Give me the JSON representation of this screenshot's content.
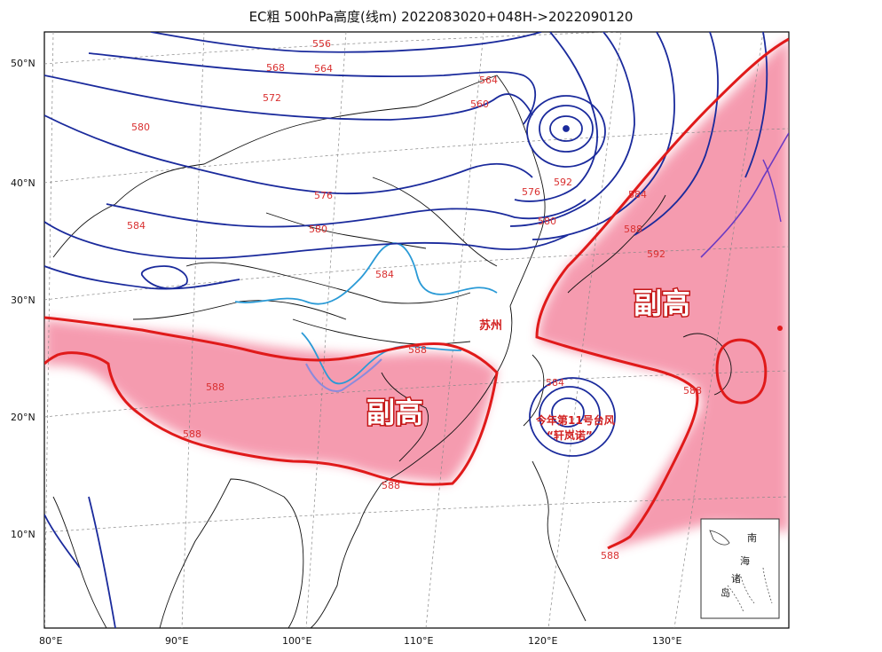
{
  "title": "EC粗 500hPa高度(线m) 2022083020+048H->2022090120",
  "axes": {
    "lat_labels": [
      "50°N",
      "40°N",
      "30°N",
      "20°N",
      "10°N"
    ],
    "lon_labels": [
      "80°E",
      "90°E",
      "100°E",
      "110°E",
      "120°E",
      "130°E"
    ]
  },
  "contour_labels": {
    "l556": "556",
    "l564a": "564",
    "l564b": "564",
    "l568": "568",
    "l572": "572",
    "l580a": "580",
    "l580b": "580",
    "l576a": "576",
    "l576b": "576",
    "l584a": "584",
    "l584b": "584",
    "l584c": "584",
    "l584d": "584",
    "l584e": "584",
    "l588a": "588",
    "l588b": "588",
    "l588c": "588",
    "l588d": "588",
    "l588e": "588",
    "l588f": "588",
    "l588g": "588",
    "l560": "560",
    "l592a": "592",
    "l592b": "592"
  },
  "annotations": {
    "subtropical_high_west": "副高",
    "subtropical_high_east": "副高",
    "city": "苏州",
    "typhoon_line1": "今年第11号台风",
    "typhoon_line2": "“轩岚诺”"
  },
  "inset": {
    "chars": [
      "南",
      "海",
      "诸",
      "岛"
    ]
  },
  "colors": {
    "contour": "#1a2a9c",
    "high_line": "#e01a1a",
    "high_fill": "#f28aa0",
    "river": "#2a9ad6"
  }
}
